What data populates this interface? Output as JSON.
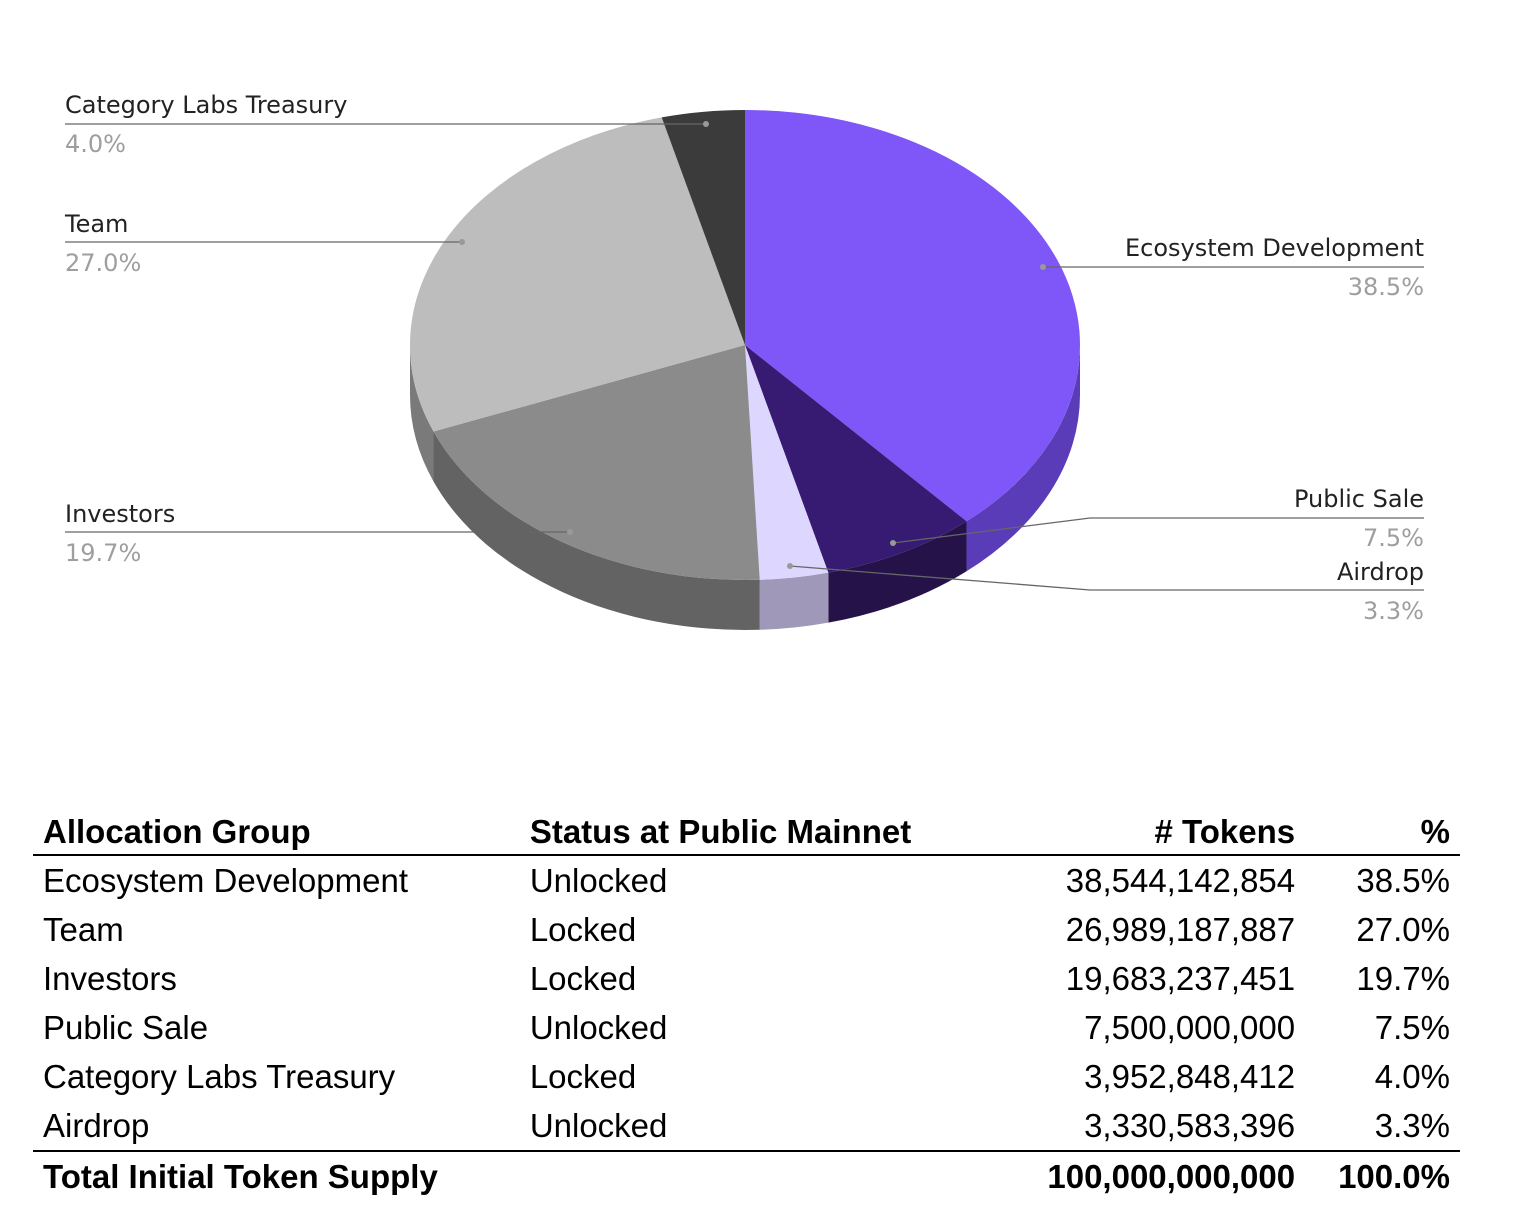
{
  "chart_data": {
    "type": "pie",
    "style": "3d",
    "title": "",
    "slices": [
      {
        "label": "Ecosystem Development",
        "value": 38.5,
        "pct_label": "38.5%",
        "color": "#7f56f7",
        "side": "#5a3cb8"
      },
      {
        "label": "Public Sale",
        "value": 7.5,
        "pct_label": "7.5%",
        "color": "#371a72",
        "side": "#241248"
      },
      {
        "label": "Airdrop",
        "value": 3.3,
        "pct_label": "3.3%",
        "color": "#ddd6ff",
        "side": "#9f98b8"
      },
      {
        "label": "Investors",
        "value": 19.7,
        "pct_label": "19.7%",
        "color": "#8b8b8b",
        "side": "#636363"
      },
      {
        "label": "Team",
        "value": 27.0,
        "pct_label": "27.0%",
        "color": "#bdbdbd",
        "side": "#7a7a7a"
      },
      {
        "label": "Category Labs Treasury",
        "value": 4.0,
        "pct_label": "4.0%",
        "color": "#3b3b3b",
        "side": "#2a2a2a"
      }
    ]
  },
  "table": {
    "headers": [
      "Allocation Group",
      "Status at Public Mainnet",
      "# Tokens",
      "%"
    ],
    "rows": [
      [
        "Ecosystem Development",
        "Unlocked",
        "38,544,142,854",
        "38.5%"
      ],
      [
        "Team",
        "Locked",
        "26,989,187,887",
        "27.0%"
      ],
      [
        "Investors",
        "Locked",
        "19,683,237,451",
        "19.7%"
      ],
      [
        "Public Sale",
        "Unlocked",
        "7,500,000,000",
        "7.5%"
      ],
      [
        "Category Labs Treasury",
        "Locked",
        "3,952,848,412",
        "4.0%"
      ],
      [
        "Airdrop",
        "Unlocked",
        "3,330,583,396",
        "3.3%"
      ]
    ],
    "total": [
      "Total Initial Token Supply",
      "",
      "100,000,000,000",
      "100.0%"
    ]
  }
}
